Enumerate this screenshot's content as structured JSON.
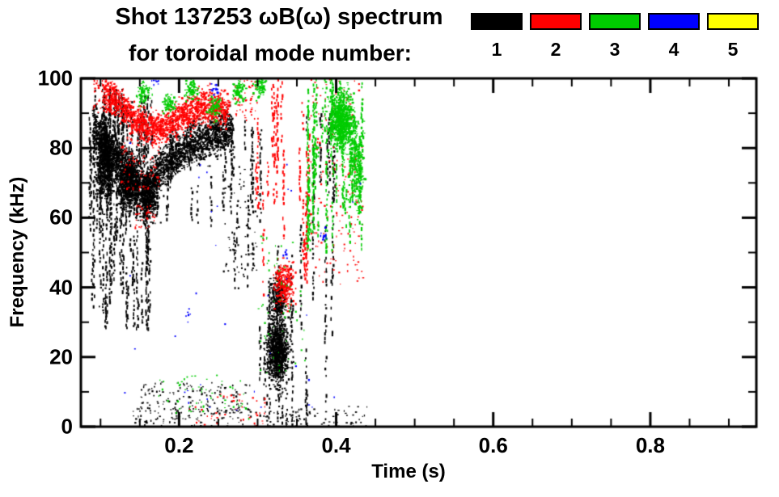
{
  "title": {
    "line1": "Shot 137253 ωB(ω) spectrum",
    "line2": "for toroidal mode number:"
  },
  "chart_data": {
    "type": "scatter",
    "description": "Spectrogram of magnetic fluctuation spectrum ωB(ω) vs time, points colored by toroidal mode number n = 1..5",
    "xlabel": "Time (s)",
    "ylabel": "Frequency (kHz)",
    "xlim": [
      0.075,
      0.935
    ],
    "ylim": [
      0,
      100
    ],
    "xticks": [
      0.2,
      0.4,
      0.6,
      0.8
    ],
    "xtick_labels": [
      "0.2",
      "0.4",
      "0.6",
      "0.8"
    ],
    "yticks": [
      0,
      20,
      40,
      60,
      80,
      100
    ],
    "ytick_labels": [
      "0",
      "20",
      "40",
      "60",
      "80",
      "100"
    ],
    "x_minor_step": 0.05,
    "y_minor_step": 10,
    "series": [
      {
        "name": "n=1",
        "label": "1",
        "color": "#000000",
        "clusters": [
          {
            "type": "vstreaks",
            "t": [
              0.085,
              0.165
            ],
            "f": [
              28,
              95
            ],
            "n": 60
          },
          {
            "type": "vstreaks",
            "t": [
              0.09,
              0.135
            ],
            "f": [
              55,
              97
            ],
            "n": 40
          },
          {
            "type": "blob",
            "t": 0.105,
            "f": 76,
            "st": 0.01,
            "sf": 8,
            "n": 650
          },
          {
            "type": "blob",
            "t": 0.135,
            "f": 70,
            "st": 0.012,
            "sf": 6,
            "n": 550
          },
          {
            "type": "blob",
            "t": 0.16,
            "f": 66,
            "st": 0.01,
            "sf": 5,
            "n": 400
          },
          {
            "type": "band",
            "waypoints": [
              [
                0.09,
                87
              ],
              [
                0.115,
                79
              ],
              [
                0.135,
                73
              ],
              [
                0.155,
                68
              ],
              [
                0.175,
                74
              ],
              [
                0.2,
                79
              ],
              [
                0.225,
                82
              ],
              [
                0.25,
                84
              ],
              [
                0.266,
                85
              ]
            ],
            "halfwidth": 5,
            "n": 2400
          },
          {
            "type": "vstreaks",
            "t": [
              0.17,
              0.27
            ],
            "f": [
              58,
              88
            ],
            "n": 22
          },
          {
            "type": "specks",
            "t": [
              0.15,
              0.29
            ],
            "f": [
              4,
              13
            ],
            "n": 150
          },
          {
            "type": "specks",
            "t": [
              0.14,
              0.44
            ],
            "f": [
              0,
              6
            ],
            "n": 190
          },
          {
            "type": "blob",
            "t": 0.325,
            "f": 22,
            "st": 0.011,
            "sf": 8,
            "n": 950
          },
          {
            "type": "blob",
            "t": 0.325,
            "f": 37,
            "st": 0.009,
            "sf": 5,
            "n": 280
          },
          {
            "type": "vstreaks",
            "t": [
              0.3,
              0.35
            ],
            "f": [
              0,
              52
            ],
            "n": 18
          },
          {
            "type": "vstreaks",
            "t": [
              0.265,
              0.305
            ],
            "f": [
              40,
              88
            ],
            "n": 10
          },
          {
            "type": "vstreaks",
            "t": [
              0.35,
              0.425
            ],
            "f": [
              0,
              90
            ],
            "n": 12
          },
          {
            "type": "specks",
            "t": [
              0.255,
              0.3
            ],
            "f": [
              40,
              75
            ],
            "n": 70
          }
        ]
      },
      {
        "name": "n=2",
        "label": "2",
        "color": "#ff0000",
        "clusters": [
          {
            "type": "band",
            "waypoints": [
              [
                0.103,
                97
              ],
              [
                0.125,
                92
              ],
              [
                0.15,
                87
              ],
              [
                0.175,
                86
              ],
              [
                0.2,
                89
              ],
              [
                0.23,
                92
              ],
              [
                0.262,
                91
              ]
            ],
            "halfwidth": 4,
            "n": 1500
          },
          {
            "type": "specks",
            "t": [
              0.125,
              0.175
            ],
            "f": [
              68,
              86
            ],
            "n": 110
          },
          {
            "type": "specks",
            "t": [
              0.14,
              0.17
            ],
            "f": [
              57,
              64
            ],
            "n": 35
          },
          {
            "type": "vstreaks",
            "t": [
              0.295,
              0.365
            ],
            "f": [
              35,
              100
            ],
            "n": 18
          },
          {
            "type": "blob",
            "t": 0.333,
            "f": 41,
            "st": 0.01,
            "sf": 5,
            "n": 260
          },
          {
            "type": "specks",
            "t": [
              0.365,
              0.435
            ],
            "f": [
              40,
              100
            ],
            "n": 190
          },
          {
            "type": "specks",
            "t": [
              0.21,
              0.31
            ],
            "f": [
              0,
              10
            ],
            "n": 45
          },
          {
            "type": "specks",
            "t": [
              0.09,
              0.12
            ],
            "f": [
              90,
              100
            ],
            "n": 60
          },
          {
            "type": "specks",
            "t": [
              0.27,
              0.3
            ],
            "f": [
              88,
              100
            ],
            "n": 50
          }
        ]
      },
      {
        "name": "n=3",
        "label": "3",
        "color": "#00cc00",
        "clusters": [
          {
            "type": "blob",
            "t": 0.155,
            "f": 96,
            "st": 0.007,
            "sf": 2.5,
            "n": 80
          },
          {
            "type": "blob",
            "t": 0.185,
            "f": 93,
            "st": 0.007,
            "sf": 2.5,
            "n": 70
          },
          {
            "type": "blob",
            "t": 0.215,
            "f": 97,
            "st": 0.007,
            "sf": 2.5,
            "n": 80
          },
          {
            "type": "blob",
            "t": 0.245,
            "f": 92,
            "st": 0.007,
            "sf": 3,
            "n": 70
          },
          {
            "type": "blob",
            "t": 0.275,
            "f": 96,
            "st": 0.007,
            "sf": 3,
            "n": 80
          },
          {
            "type": "blob",
            "t": 0.302,
            "f": 98,
            "st": 0.006,
            "sf": 2.5,
            "n": 80
          },
          {
            "type": "vstreaks",
            "t": [
              0.36,
              0.435
            ],
            "f": [
              50,
              100
            ],
            "n": 45
          },
          {
            "type": "blob",
            "t": 0.405,
            "f": 88,
            "st": 0.013,
            "sf": 7,
            "n": 850
          },
          {
            "type": "blob",
            "t": 0.425,
            "f": 75,
            "st": 0.008,
            "sf": 10,
            "n": 260
          },
          {
            "type": "specks",
            "t": [
              0.3,
              0.36
            ],
            "f": [
              15,
              55
            ],
            "n": 65
          },
          {
            "type": "specks",
            "t": [
              0.17,
              0.29
            ],
            "f": [
              2,
              16
            ],
            "n": 55
          }
        ]
      },
      {
        "name": "n=4",
        "label": "4",
        "color": "#0000ff",
        "clusters": [
          {
            "type": "specks",
            "t": [
              0.12,
              0.44
            ],
            "f": [
              2,
              100
            ],
            "n": 38
          },
          {
            "type": "blob",
            "t": 0.245,
            "f": 97,
            "st": 0.004,
            "sf": 2,
            "n": 14
          },
          {
            "type": "blob",
            "t": 0.17,
            "f": 99,
            "st": 0.004,
            "sf": 1.5,
            "n": 8
          },
          {
            "type": "blob",
            "t": 0.385,
            "f": 55,
            "st": 0.004,
            "sf": 2,
            "n": 10
          },
          {
            "type": "blob",
            "t": 0.21,
            "f": 32,
            "st": 0.003,
            "sf": 2,
            "n": 7
          },
          {
            "type": "blob",
            "t": 0.335,
            "f": 50,
            "st": 0.003,
            "sf": 2,
            "n": 7
          }
        ]
      },
      {
        "name": "n=5",
        "label": "5",
        "color": "#ffff00",
        "clusters": []
      }
    ]
  }
}
